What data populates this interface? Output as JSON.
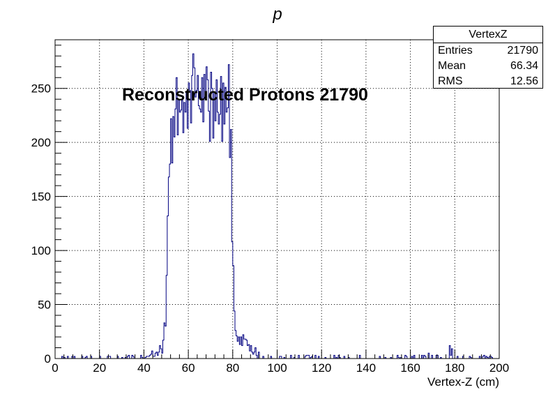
{
  "chart_data": {
    "type": "histogram",
    "title": "p",
    "xlabel": "Vertex-Z (cm)",
    "ylabel": "",
    "xlim": [
      0,
      200
    ],
    "ylim": [
      0,
      295
    ],
    "x_ticks": [
      "0",
      "20",
      "40",
      "60",
      "80",
      "100",
      "120",
      "140",
      "160",
      "180",
      "200"
    ],
    "y_ticks": [
      "0",
      "50",
      "100",
      "150",
      "200",
      "250"
    ],
    "grid": true,
    "line_color": "#000080",
    "bin_width": 0.5,
    "annotation": "Reconstructed Protons 21790",
    "stats": {
      "title": "VertexZ",
      "rows": [
        {
          "label": "Entries",
          "value": "21790"
        },
        {
          "label": "Mean",
          "value": "66.34"
        },
        {
          "label": "RMS",
          "value": "12.56"
        }
      ]
    },
    "segments": [
      {
        "x0": 0,
        "x1": 40,
        "profile": "flat",
        "y0": 0.6,
        "y1": 0.6
      },
      {
        "x0": 40,
        "x1": 48,
        "profile": "ramp",
        "y0": 1,
        "y1": 6
      },
      {
        "x0": 48,
        "x1": 50,
        "profile": "ramp",
        "y0": 8,
        "y1": 30
      },
      {
        "x0": 50,
        "x1": 51.5,
        "profile": "ramp",
        "y0": 60,
        "y1": 185
      },
      {
        "x0": 51.5,
        "x1": 55,
        "profile": "ramp",
        "y0": 195,
        "y1": 215
      },
      {
        "x0": 55,
        "x1": 64,
        "profile": "ramp",
        "y0": 220,
        "y1": 240
      },
      {
        "x0": 64,
        "x1": 76,
        "profile": "flat",
        "y0": 238,
        "y1": 238
      },
      {
        "x0": 76,
        "x1": 79.5,
        "profile": "ramp",
        "y0": 235,
        "y1": 215
      },
      {
        "x0": 79.5,
        "x1": 81,
        "profile": "ramp",
        "y0": 120,
        "y1": 40
      },
      {
        "x0": 81,
        "x1": 92,
        "profile": "ramp",
        "y0": 22,
        "y1": 4
      },
      {
        "x0": 92,
        "x1": 200,
        "profile": "flat",
        "y0": 0.5,
        "y1": 0.5
      }
    ],
    "peaks": [
      {
        "x": 52,
        "y": 222
      },
      {
        "x": 56.5,
        "y": 230
      },
      {
        "x": 60,
        "y": 255
      },
      {
        "x": 61.5,
        "y": 262
      },
      {
        "x": 62,
        "y": 282
      },
      {
        "x": 64,
        "y": 262
      },
      {
        "x": 66,
        "y": 260
      },
      {
        "x": 68.5,
        "y": 258
      },
      {
        "x": 70,
        "y": 265
      },
      {
        "x": 72.5,
        "y": 258
      },
      {
        "x": 78,
        "y": 272
      },
      {
        "x": 168,
        "y": 5
      },
      {
        "x": 177.5,
        "y": 12
      },
      {
        "x": 178.5,
        "y": 9
      }
    ]
  }
}
